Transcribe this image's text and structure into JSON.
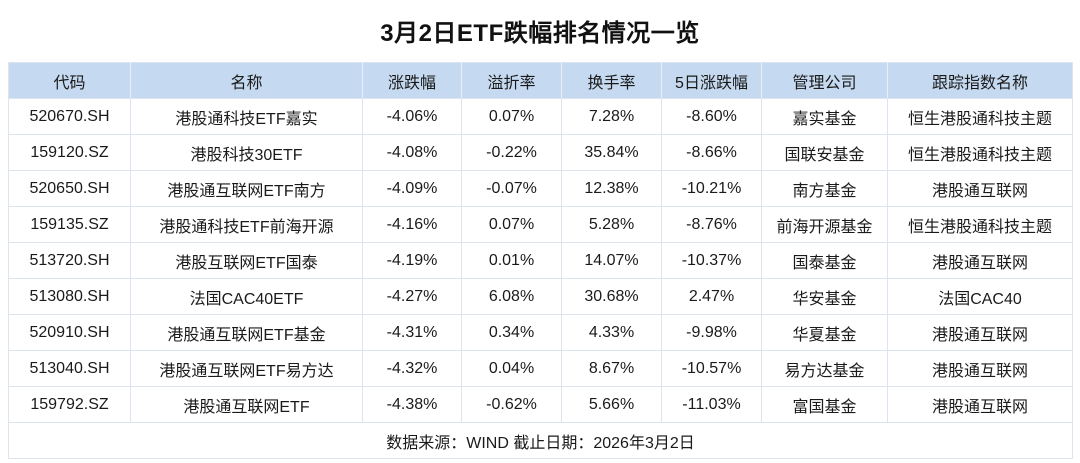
{
  "title": "3月2日ETF跌幅排名情况一览",
  "table": {
    "headers": [
      "代码",
      "名称",
      "涨跌幅",
      "溢折率",
      "换手率",
      "5日涨跌幅",
      "管理公司",
      "跟踪指数名称"
    ],
    "rows": [
      [
        "520670.SH",
        "港股通科技ETF嘉实",
        "-4.06%",
        "0.07%",
        "7.28%",
        "-8.60%",
        "嘉实基金",
        "恒生港股通科技主题"
      ],
      [
        "159120.SZ",
        "港股科技30ETF",
        "-4.08%",
        "-0.22%",
        "35.84%",
        "-8.66%",
        "国联安基金",
        "恒生港股通科技主题"
      ],
      [
        "520650.SH",
        "港股通互联网ETF南方",
        "-4.09%",
        "-0.07%",
        "12.38%",
        "-10.21%",
        "南方基金",
        "港股通互联网"
      ],
      [
        "159135.SZ",
        "港股通科技ETF前海开源",
        "-4.16%",
        "0.07%",
        "5.28%",
        "-8.76%",
        "前海开源基金",
        "恒生港股通科技主题"
      ],
      [
        "513720.SH",
        "港股互联网ETF国泰",
        "-4.19%",
        "0.01%",
        "14.07%",
        "-10.37%",
        "国泰基金",
        "港股通互联网"
      ],
      [
        "513080.SH",
        "法国CAC40ETF",
        "-4.27%",
        "6.08%",
        "30.68%",
        "2.47%",
        "华安基金",
        "法国CAC40"
      ],
      [
        "520910.SH",
        "港股通互联网ETF基金",
        "-4.31%",
        "0.34%",
        "4.33%",
        "-9.98%",
        "华夏基金",
        "港股通互联网"
      ],
      [
        "513040.SH",
        "港股通互联网ETF易方达",
        "-4.32%",
        "0.04%",
        "8.67%",
        "-10.57%",
        "易方达基金",
        "港股通互联网"
      ],
      [
        "159792.SZ",
        "港股通互联网ETF",
        "-4.38%",
        "-0.62%",
        "5.66%",
        "-11.03%",
        "富国基金",
        "港股通互联网"
      ]
    ],
    "footer": "数据来源：WIND 截止日期：2026年3月2日"
  },
  "colors": {
    "background": "#ffffff",
    "header_bg": "#c5d9f0",
    "border": "#dde4f0",
    "text": "#1a1a1a"
  }
}
